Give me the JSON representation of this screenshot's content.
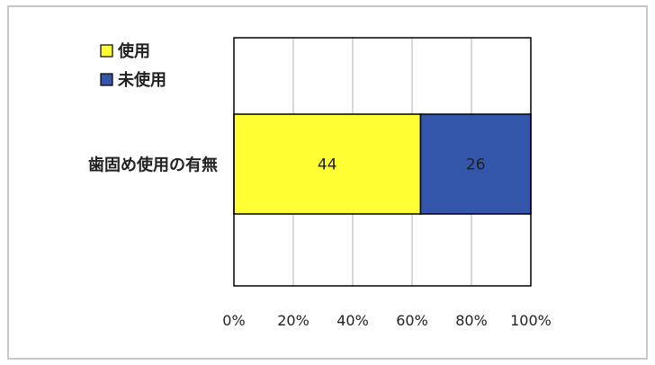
{
  "chart_data": {
    "type": "bar",
    "orientation": "horizontal",
    "stacked": "percent",
    "categories": [
      "歯固め使用の有無"
    ],
    "series": [
      {
        "name": "使用",
        "values": [
          44
        ],
        "color": "#ffff33"
      },
      {
        "name": "未使用",
        "values": [
          26
        ],
        "color": "#3355aa"
      }
    ],
    "xlim": [
      0,
      100
    ],
    "x_ticks": [
      "0%",
      "20%",
      "40%",
      "60%",
      "80%",
      "100%"
    ],
    "grid": true,
    "legend": "top-left"
  }
}
